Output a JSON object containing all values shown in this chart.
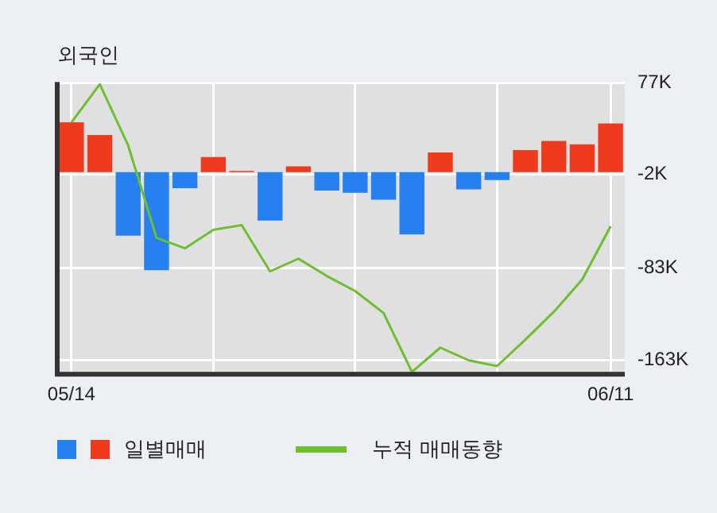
{
  "chart_data": {
    "type": "bar",
    "title": "외국인",
    "categories": [
      "05/14",
      null,
      null,
      null,
      null,
      null,
      null,
      null,
      null,
      null,
      null,
      null,
      null,
      null,
      null,
      null,
      null,
      null,
      null,
      "06/11"
    ],
    "series": [
      {
        "name": "일별매매",
        "colors": [
          "#f03a1e",
          "#f03a1e",
          "#2680f0",
          "#2680f0",
          "#2680f0",
          "#f03a1e",
          "#f03a1e",
          "#2680f0",
          "#f03a1e",
          "#2680f0",
          "#2680f0",
          "#2680f0",
          "#2680f0",
          "#f03a1e",
          "#2680f0",
          "#2680f0",
          "#f03a1e",
          "#f03a1e",
          "#f03a1e",
          "#f03a1e"
        ],
        "values": [
          43,
          32,
          -55,
          -85,
          -14,
          13,
          1,
          -42,
          5,
          -16,
          -18,
          -24,
          -54,
          17,
          -15,
          -7,
          19,
          27,
          24,
          42
        ]
      },
      {
        "name": "누적 매매동향",
        "type": "line",
        "color": "#6cbf2e",
        "values": [
          43,
          76,
          23,
          -57,
          -66,
          -50,
          -46,
          -86,
          -75,
          -90,
          -103,
          -122,
          -173,
          -152,
          -163,
          -168,
          -145,
          -121,
          -93,
          -47
        ]
      }
    ],
    "ylim": [
      -175,
      78
    ],
    "yticks": [
      {
        "value": 77,
        "label": "77K"
      },
      {
        "value": -2,
        "label": "-2K"
      },
      {
        "value": -83,
        "label": "-83K"
      },
      {
        "value": -163,
        "label": "-163K"
      }
    ],
    "grid": true,
    "legend": "bottom",
    "marker": "none"
  }
}
